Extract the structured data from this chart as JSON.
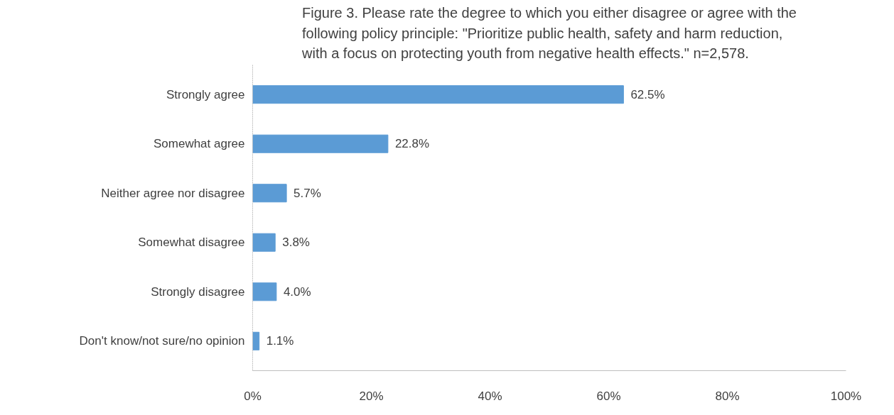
{
  "chart_data": {
    "type": "bar",
    "orientation": "horizontal",
    "title": "Figure 3. Please rate the degree to which you either disagree or agree with the following policy principle: \"Prioritize public health, safety and harm reduction, with a focus on protecting youth from negative health effects.\" n=2,578.",
    "categories": [
      "Strongly agree",
      "Somewhat agree",
      "Neither agree nor disagree",
      "Somewhat disagree",
      "Strongly disagree",
      "Don't know/not sure/no opinion"
    ],
    "values": [
      62.5,
      22.8,
      5.7,
      3.8,
      4.0,
      1.1
    ],
    "value_labels": [
      "62.5%",
      "22.8%",
      "5.7%",
      "3.8%",
      "4.0%",
      "1.1%"
    ],
    "color": "#5b9bd5",
    "xlim": [
      0,
      100
    ],
    "xticks": [
      {
        "value": 0,
        "label": "0%"
      },
      {
        "value": 20,
        "label": "20%"
      },
      {
        "value": 40,
        "label": "40%"
      },
      {
        "value": 60,
        "label": "60%"
      },
      {
        "value": 80,
        "label": "80%"
      },
      {
        "value": 100,
        "label": "100%"
      }
    ],
    "grid": false
  }
}
